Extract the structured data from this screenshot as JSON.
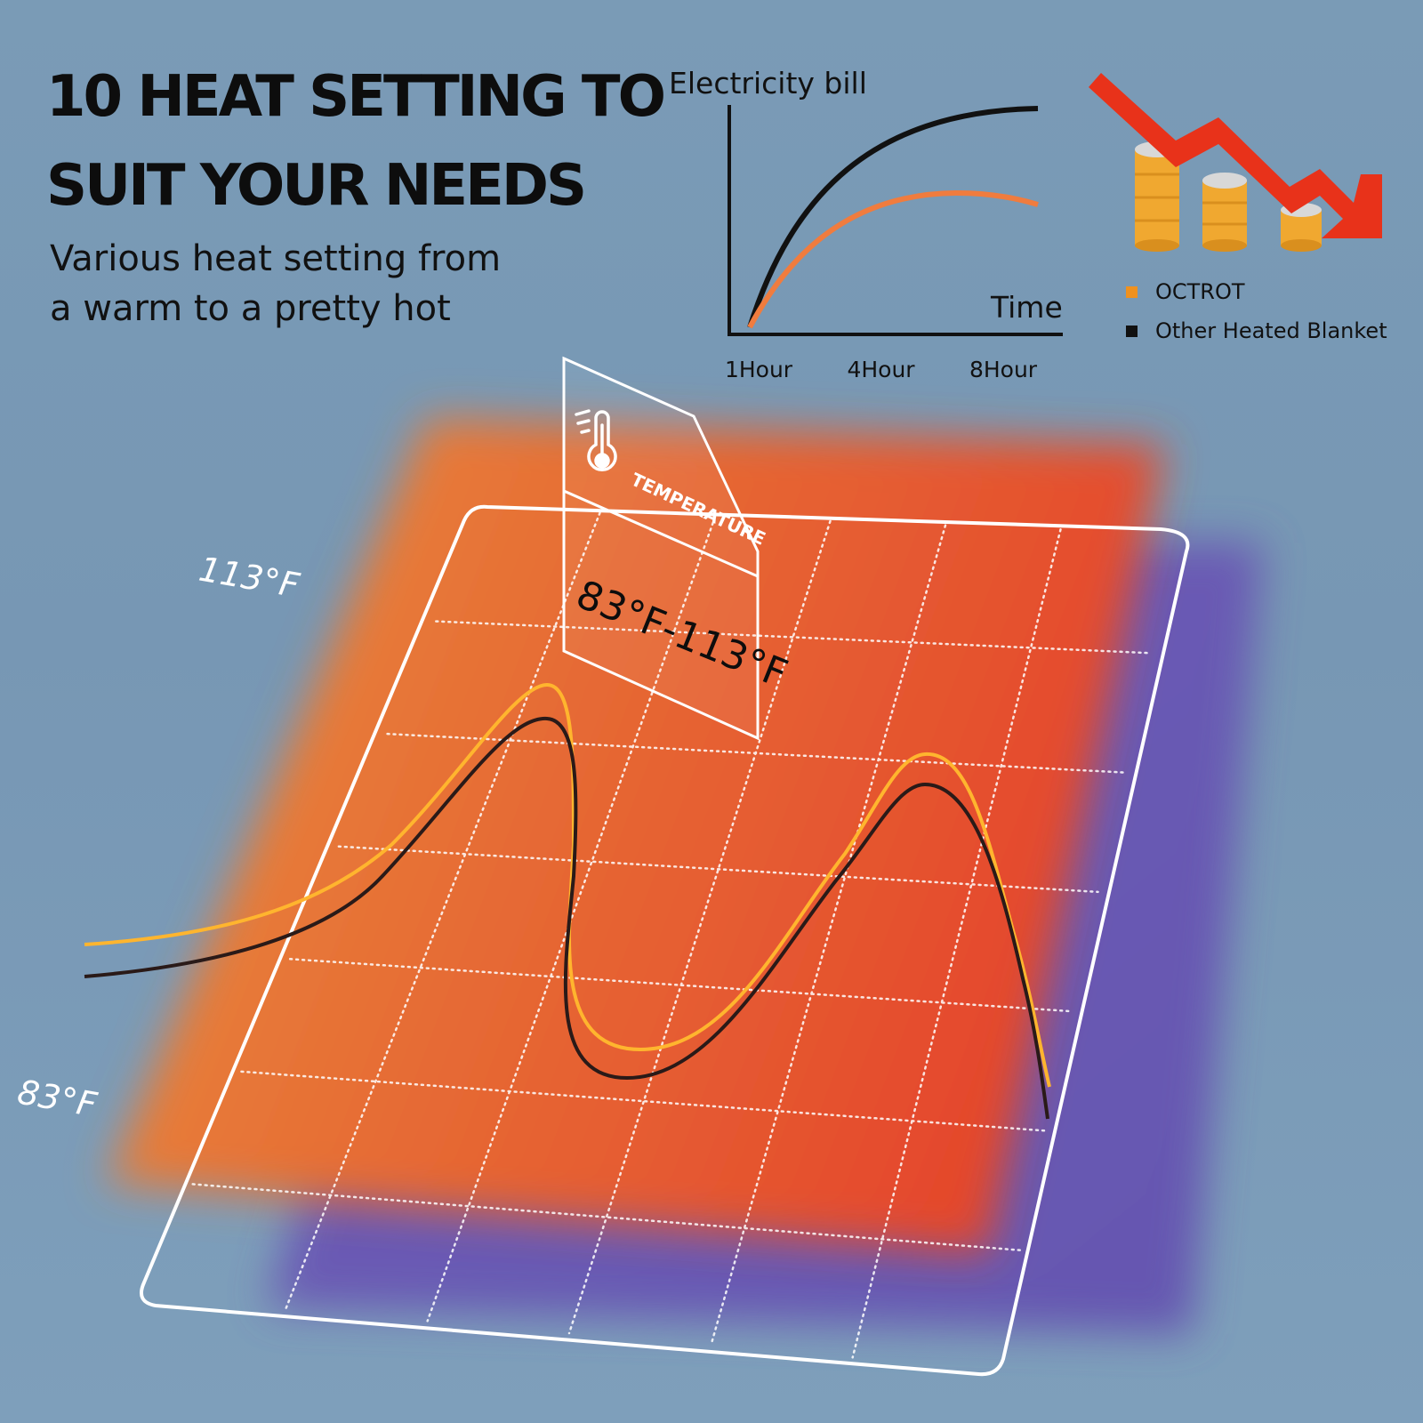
{
  "headline": {
    "line1": "10 HEAT SETTING TO",
    "line2": "SUIT YOUR NEEDS"
  },
  "subheadline": {
    "line1": "Various heat setting from",
    "line2": "a warm to a pretty hot"
  },
  "chart_data": {
    "type": "line",
    "ylabel": "Electricity bill",
    "xlabel": "Time",
    "categories": [
      "1Hour",
      "4Hour",
      "8Hour"
    ],
    "series": [
      {
        "name": "OCTROT",
        "color": "#f07c3e"
      },
      {
        "name": "Other Heated Blanket",
        "color": "#111111"
      }
    ]
  },
  "legend": {
    "items": [
      {
        "label": "OCTROT",
        "color": "#f0911e"
      },
      {
        "label": "Other Heated Blanket",
        "color": "#111111"
      }
    ]
  },
  "temperature_card": {
    "label": "TEMPERATURE",
    "range": "83°F-113°F",
    "icon": "thermometer-icon"
  },
  "temperature_labels": {
    "high": "113°F",
    "low": "83°F"
  },
  "colors": {
    "background": "#7a9bb6",
    "heat_orange": "#e8883c",
    "heat_red": "#e4472c",
    "shadow_purple": "#6a56b4",
    "curve_yellow": "#ffb52e",
    "curve_dark": "#2a1a18",
    "arrow_red": "#e8321a",
    "coin_gold": "#f0a830"
  }
}
